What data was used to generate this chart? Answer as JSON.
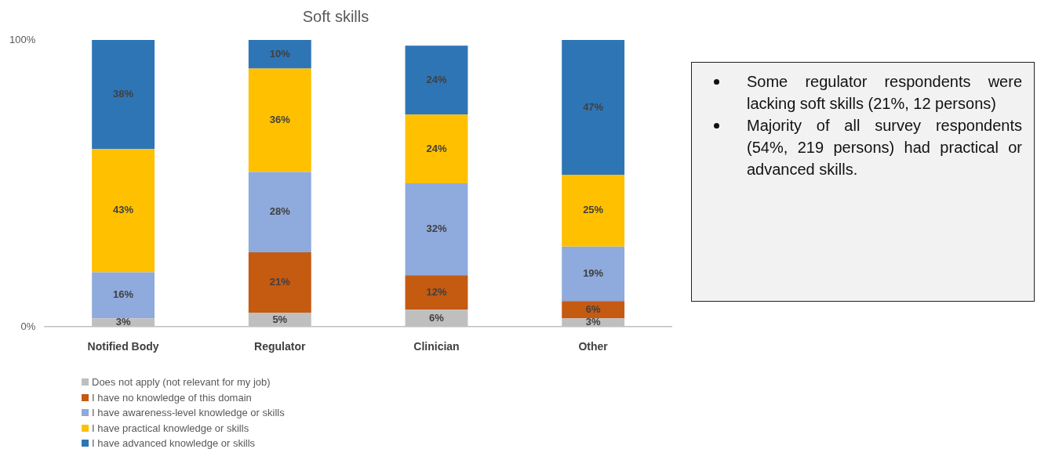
{
  "chart_data": {
    "type": "bar",
    "stacked": true,
    "title": "Soft skills",
    "categories": [
      "Notified Body",
      "Regulator",
      "Clinician",
      "Other"
    ],
    "series": [
      {
        "name": "Does not apply (not relevant for my job)",
        "color": "#bfbfbf",
        "values": [
          3,
          5,
          6,
          3
        ],
        "value_labels": [
          "3%",
          "5%",
          "6%",
          "3%"
        ]
      },
      {
        "name": "I have no knowledge of this domain",
        "color": "#c55a11",
        "values": [
          0,
          21,
          12,
          6
        ],
        "value_labels": [
          null,
          "21%",
          "12%",
          "6%"
        ]
      },
      {
        "name": "I have awareness-level knowledge or skills",
        "color": "#8faadc",
        "values": [
          16,
          28,
          32,
          19
        ],
        "value_labels": [
          "16%",
          "28%",
          "32%",
          "19%"
        ]
      },
      {
        "name": "I have practical knowledge or skills",
        "color": "#ffc000",
        "values": [
          43,
          36,
          24,
          25
        ],
        "value_labels": [
          "43%",
          "36%",
          "24%",
          "25%"
        ]
      },
      {
        "name": "I have advanced knowledge or skills",
        "color": "#2e75b6",
        "values": [
          38,
          10,
          24,
          47
        ],
        "value_labels": [
          "38%",
          "10%",
          "24%",
          "47%"
        ]
      }
    ],
    "ylim": [
      0,
      100
    ],
    "yticks": [
      {
        "value": 0,
        "label": "0%"
      },
      {
        "value": 100,
        "label": "100%"
      }
    ],
    "legend": "bottom",
    "annotations": [
      "Some regulator respondents were lacking soft skills (21%, 12 persons)",
      "Majority of all survey respondents (54%, 219 persons) had practical or advanced skills."
    ]
  }
}
